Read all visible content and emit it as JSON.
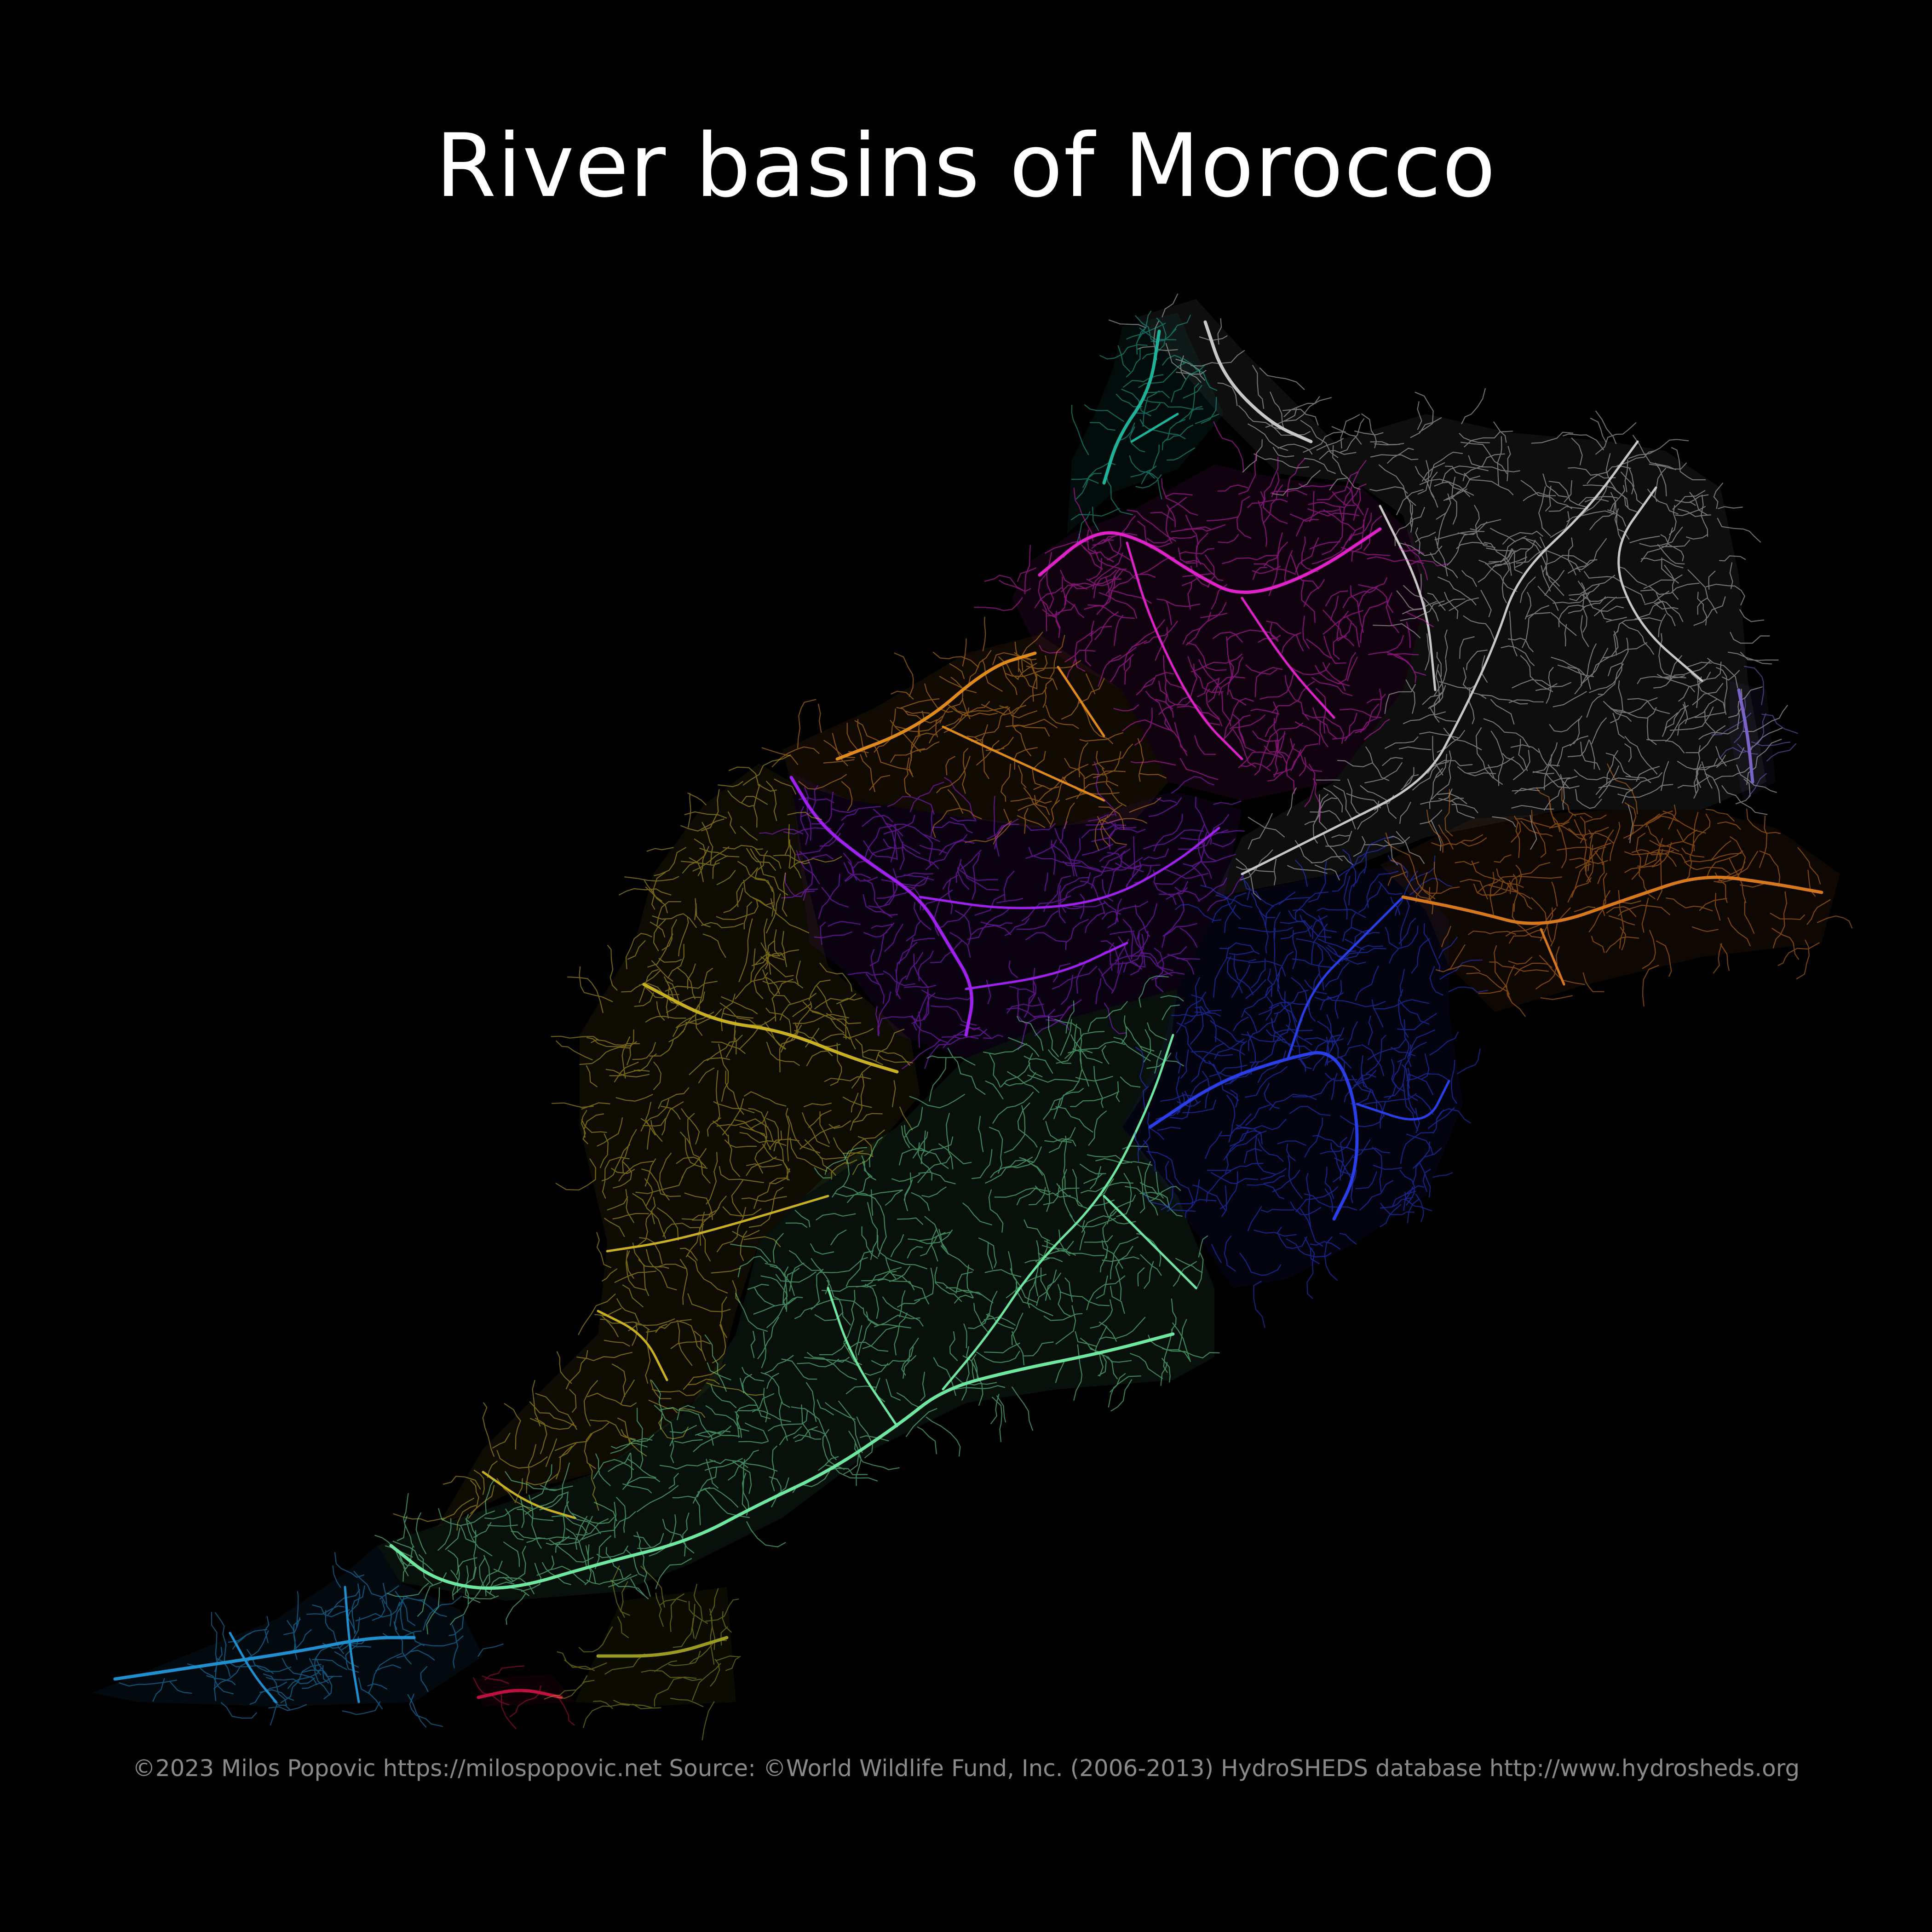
{
  "title": "River basins of Morocco",
  "caption": "©2023 Milos Popovic https://milospopovic.net Source: ©World Wildlife Fund, Inc. (2006-2013) HydroSHEDS database http://www.hydrosheds.org",
  "basins": [
    {
      "id": "basin-northeast",
      "color": "#c8c8c8"
    },
    {
      "id": "basin-loukkos",
      "color": "#1fb29a"
    },
    {
      "id": "basin-sebou",
      "color": "#e020c8"
    },
    {
      "id": "basin-bouregreg",
      "color": "#e08a1c"
    },
    {
      "id": "basin-oum-er-rbia",
      "color": "#a020f0"
    },
    {
      "id": "basin-tensift",
      "color": "#c8b020"
    },
    {
      "id": "basin-draa",
      "color": "#6ee8a0"
    },
    {
      "id": "basin-ziz",
      "color": "#2a3ee8"
    },
    {
      "id": "basin-guir",
      "color": "#d8781c"
    },
    {
      "id": "basin-souss",
      "color": "#1e90d0"
    },
    {
      "id": "basin-extra-violet",
      "color": "#7a64c8"
    },
    {
      "id": "basin-extra-red",
      "color": "#c01040"
    },
    {
      "id": "basin-extra-olive",
      "color": "#9a9a20"
    }
  ]
}
